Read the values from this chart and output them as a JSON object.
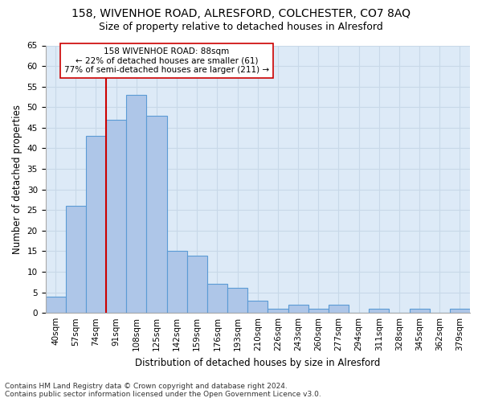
{
  "title": "158, WIVENHOE ROAD, ALRESFORD, COLCHESTER, CO7 8AQ",
  "subtitle": "Size of property relative to detached houses in Alresford",
  "xlabel": "Distribution of detached houses by size in Alresford",
  "ylabel": "Number of detached properties",
  "footer_line1": "Contains HM Land Registry data © Crown copyright and database right 2024.",
  "footer_line2": "Contains public sector information licensed under the Open Government Licence v3.0.",
  "categories": [
    "40sqm",
    "57sqm",
    "74sqm",
    "91sqm",
    "108sqm",
    "125sqm",
    "142sqm",
    "159sqm",
    "176sqm",
    "193sqm",
    "210sqm",
    "226sqm",
    "243sqm",
    "260sqm",
    "277sqm",
    "294sqm",
    "311sqm",
    "328sqm",
    "345sqm",
    "362sqm",
    "379sqm"
  ],
  "values": [
    4,
    26,
    43,
    47,
    53,
    48,
    15,
    14,
    7,
    6,
    3,
    1,
    2,
    1,
    2,
    0,
    1,
    0,
    1,
    0,
    1
  ],
  "bar_color": "#aec6e8",
  "bar_edge_color": "#5b9bd5",
  "grid_color": "#c8d8e8",
  "background_color": "#ddeaf7",
  "vline_color": "#cc0000",
  "vline_index": 3,
  "annotation_text": "158 WIVENHOE ROAD: 88sqm\n← 22% of detached houses are smaller (61)\n77% of semi-detached houses are larger (211) →",
  "annotation_box_color": "white",
  "annotation_box_edge_color": "#cc0000",
  "ylim": [
    0,
    65
  ],
  "yticks": [
    0,
    5,
    10,
    15,
    20,
    25,
    30,
    35,
    40,
    45,
    50,
    55,
    60,
    65
  ],
  "title_fontsize": 10,
  "subtitle_fontsize": 9,
  "xlabel_fontsize": 8.5,
  "ylabel_fontsize": 8.5,
  "tick_fontsize": 7.5,
  "annotation_fontsize": 7.5,
  "footer_fontsize": 6.5
}
